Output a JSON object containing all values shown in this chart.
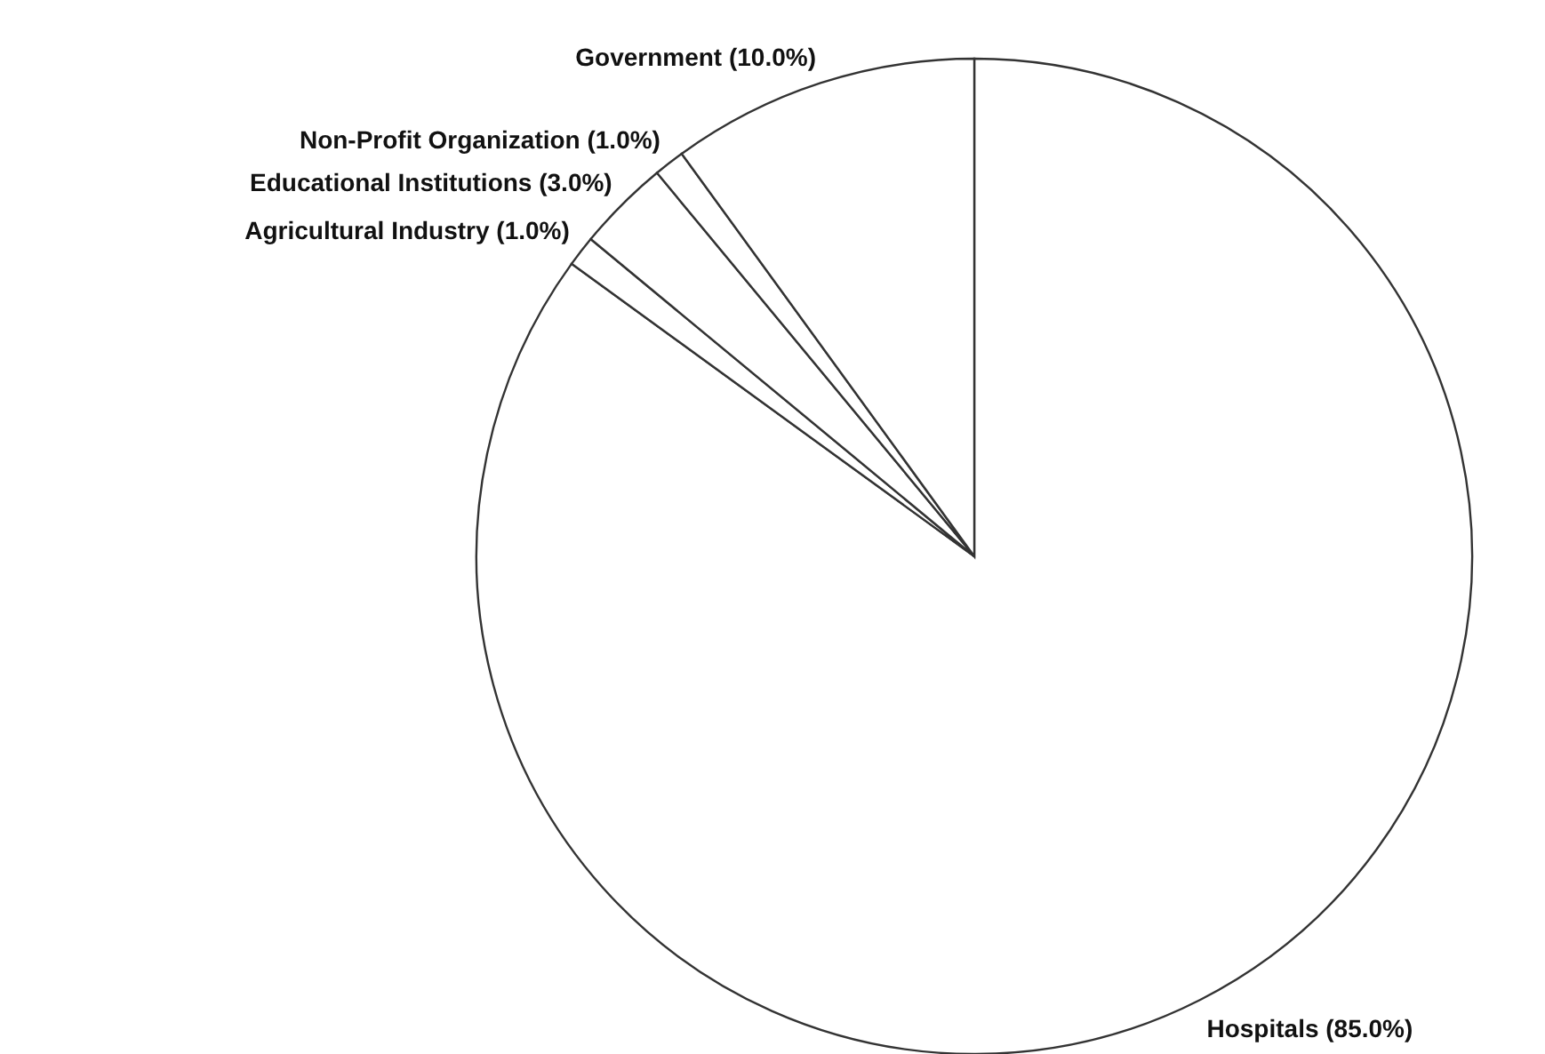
{
  "chart_data": {
    "type": "pie",
    "categories": [
      "Hospitals (85.0%)",
      "Agricultural Industry (1.0%)",
      "Educational Institutions (3.0%)",
      "Non-Profit Organization (1.0%)",
      "Government (10.0%)"
    ],
    "values": [
      85,
      1,
      3,
      1,
      10
    ],
    "colors": [
      "#ffffff",
      "#ffffff",
      "#ffffff",
      "#ffffff",
      "#ffffff"
    ]
  }
}
